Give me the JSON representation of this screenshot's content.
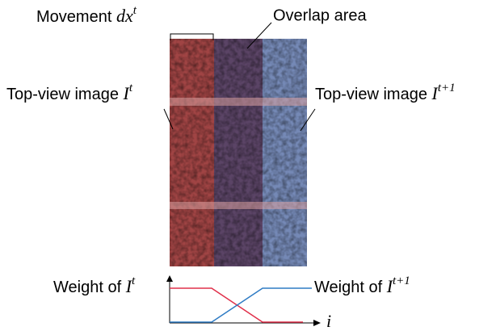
{
  "labels": {
    "movement": {
      "text": "Movement",
      "math": "dx",
      "sup": "t"
    },
    "overlap": {
      "text": "Overlap area"
    },
    "left_image": {
      "text": "Top-view image",
      "math": "I",
      "sup": "t"
    },
    "right_image": {
      "text": "Top-view image",
      "math": "I",
      "sup": "t+1"
    },
    "left_weight": {
      "text": "Weight of",
      "math": "I",
      "sup": "t"
    },
    "right_weight": {
      "text": "Weight of",
      "math": "I",
      "sup": "t+1"
    },
    "axis": {
      "math": "i"
    }
  }
}
